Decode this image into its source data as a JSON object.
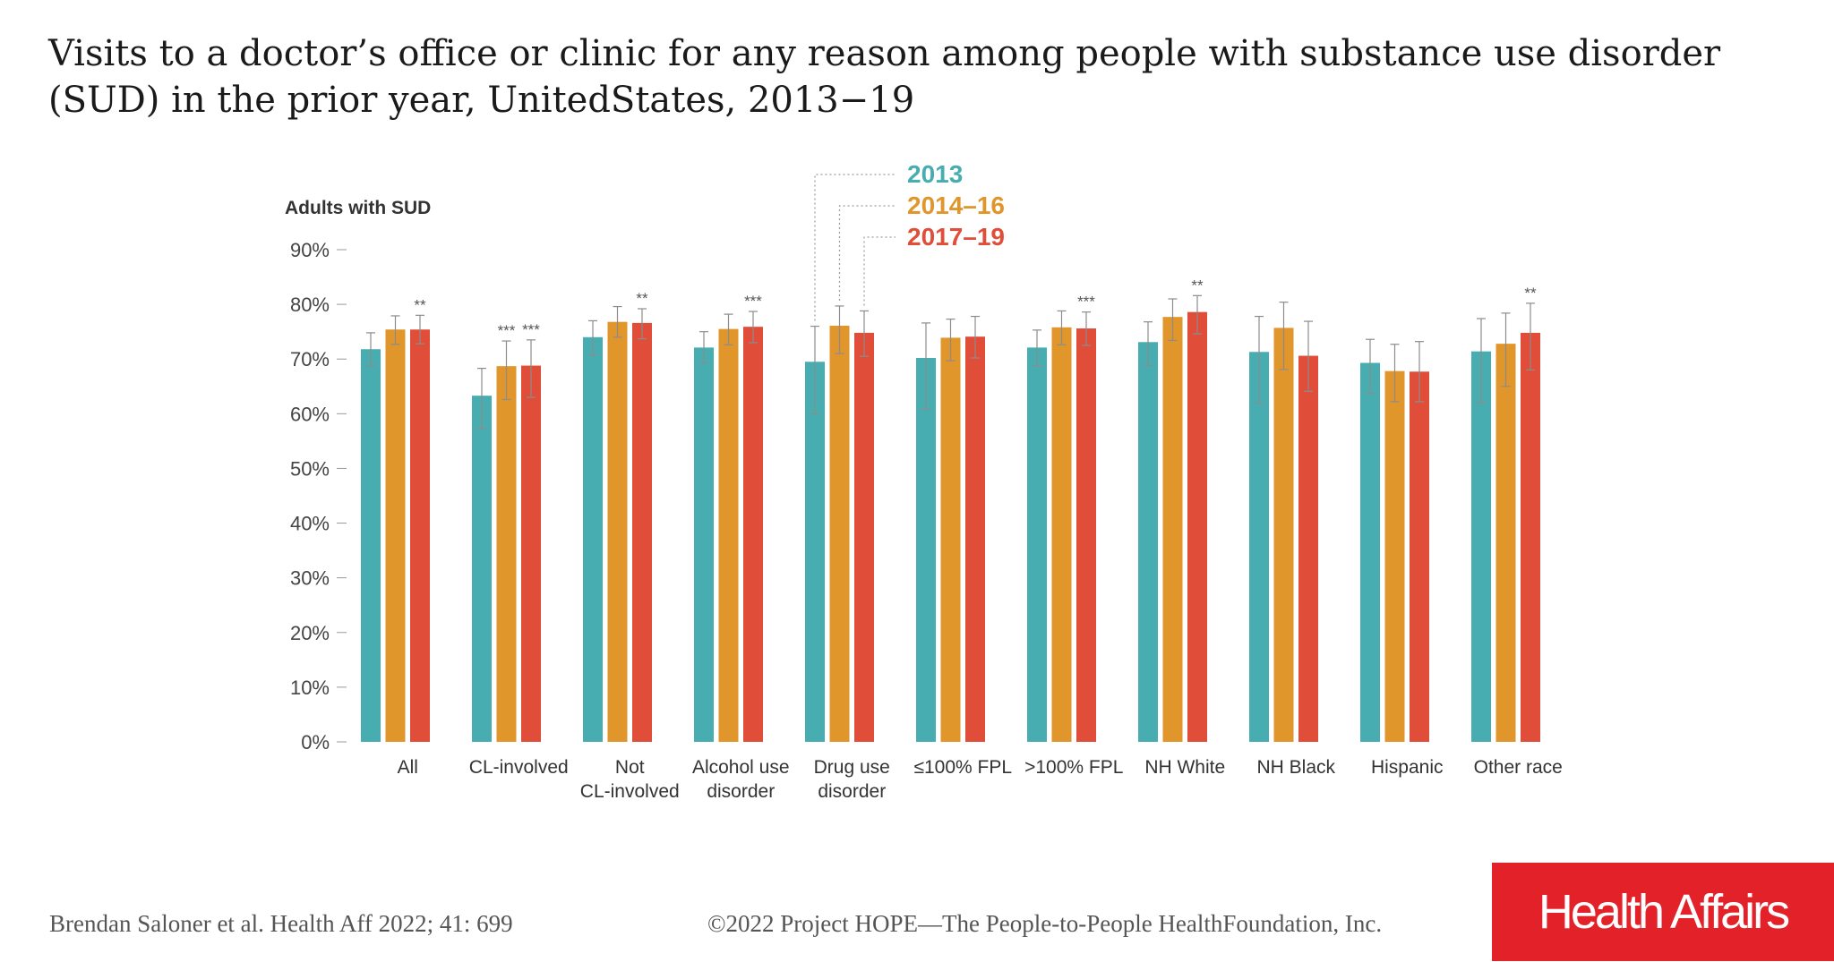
{
  "title": "Visits to a doctor’s office or clinic for any reason among people with substance use disorder (SUD) in the prior year, UnitedStates, 2013−19",
  "footer": {
    "citation": "Brendan Saloner et al. Health Aff 2022; 41: 699",
    "copyright": "©2022 Project HOPE—The People-to-People HealthFoundation, Inc.",
    "logo": "Health Affairs"
  },
  "chart_data": {
    "type": "bar",
    "ylabel": "Adults with SUD",
    "ylim": [
      0,
      90
    ],
    "yticks": [
      0,
      10,
      20,
      30,
      40,
      50,
      60,
      70,
      80,
      90
    ],
    "ytick_labels": [
      "0%",
      "10%",
      "20%",
      "30%",
      "40%",
      "50%",
      "60%",
      "70%",
      "80%",
      "90%"
    ],
    "grid": false,
    "legend_position": "top",
    "categories": [
      [
        "All"
      ],
      [
        "CL-involved"
      ],
      [
        "Not",
        "CL-involved"
      ],
      [
        "Alcohol use",
        "disorder"
      ],
      [
        "Drug use",
        "disorder"
      ],
      [
        "≤100% FPL"
      ],
      [
        ">100% FPL"
      ],
      [
        "NH White"
      ],
      [
        "NH Black"
      ],
      [
        "Hispanic"
      ],
      [
        "Other race"
      ]
    ],
    "series": [
      {
        "name": "2013",
        "color": "#47adb0",
        "values": [
          71.8,
          63.3,
          74.0,
          72.1,
          69.5,
          70.2,
          72.1,
          73.1,
          71.3,
          69.3,
          71.4
        ],
        "error_low": [
          68.7,
          57.2,
          70.7,
          69.3,
          60.0,
          60.8,
          68.8,
          68.8,
          61.9,
          63.7,
          62.0
        ],
        "error_high": [
          74.8,
          68.3,
          77.0,
          75.0,
          76.0,
          76.6,
          75.3,
          76.8,
          77.8,
          73.6,
          77.4
        ],
        "significance": [
          "",
          "",
          "",
          "",
          "",
          "",
          "",
          "",
          "",
          "",
          ""
        ]
      },
      {
        "name": "2014–16",
        "color": "#e0962b",
        "values": [
          75.4,
          68.7,
          76.8,
          75.5,
          76.1,
          73.9,
          75.8,
          77.7,
          75.7,
          67.8,
          72.8
        ],
        "error_low": [
          72.7,
          62.6,
          74.0,
          72.6,
          71.0,
          69.7,
          72.6,
          73.4,
          68.1,
          62.2,
          65.0
        ],
        "error_high": [
          77.9,
          73.3,
          79.6,
          78.2,
          79.7,
          77.3,
          78.8,
          81.0,
          80.4,
          72.7,
          78.4
        ],
        "significance": [
          "",
          "***",
          "",
          "",
          "",
          "",
          "",
          "",
          "",
          "",
          ""
        ]
      },
      {
        "name": "2017–19",
        "color": "#e04e3a",
        "values": [
          75.4,
          68.8,
          76.6,
          75.9,
          74.8,
          74.1,
          75.6,
          78.6,
          70.6,
          67.7,
          74.8
        ],
        "error_low": [
          72.8,
          63.0,
          73.7,
          73.0,
          70.5,
          70.2,
          72.5,
          74.6,
          64.1,
          62.2,
          68.0
        ],
        "error_high": [
          78.0,
          73.5,
          79.2,
          78.7,
          78.8,
          77.8,
          78.6,
          81.6,
          76.9,
          73.2,
          80.2
        ],
        "significance": [
          "**",
          "***",
          "**",
          "***",
          "",
          "",
          "***",
          "**",
          "",
          "",
          "**"
        ]
      }
    ]
  }
}
